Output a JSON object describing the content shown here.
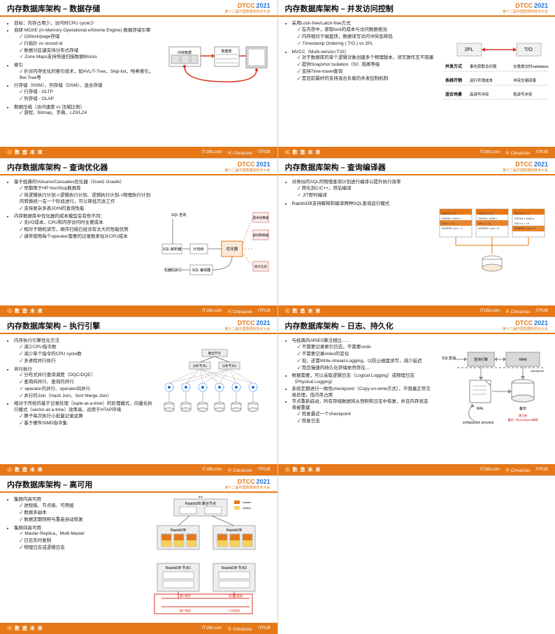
{
  "brand": {
    "name": "DTCC",
    "year": "2021",
    "sub": "第十二届中国数据库技术大会"
  },
  "footer": {
    "slogan": "数 造 未 来",
    "logos": [
      "IT168.com",
      "⦿ ChinaUnix",
      "ITPUB"
    ]
  },
  "slides": [
    {
      "title": "内存数据库架构 – 数据存储",
      "bullets": [
        {
          "t": "目标：内存占用少，访问时CPU cycle少"
        },
        {
          "t": "自研 MOXE (in-Memory Operational eXtreme Engine) 数据存储引擎",
          "c": [
            "以block/page存储",
            "行指针 vs record-id",
            "数据分区键支持分布式存储",
            "Zone Maps支持快速扫描数据Blocks"
          ]
        },
        {
          "t": "索引",
          "c": [
            "针对内存优化的索引技术，如AVL/T-Tree，Skip-list，哈希索引，Bw-Tree等"
          ]
        },
        {
          "t": "行存储（NSM）、列存储（DSM）、混合存储",
          "c": [
            "行存储 - OLTP",
            "列存储 - OLAP"
          ]
        },
        {
          "t": "数据压缩（访问速度 vs 压缩比例）",
          "c": [
            "游程、Bitmap、字典、LZ0/LZ4"
          ]
        }
      ],
      "diagram": "storage"
    },
    {
      "title": "内存数据库架构 – 并发访问控制",
      "bullets": [
        {
          "t": "采用Lock-free/Latch-free方式",
          "c": [
            "在内存中，获取lock的成本与访问数据相当",
            "内存相对于磁盘快，数据读写访问冲突会降低",
            "Timestamp Ordering ( T/O ) vs  2PL"
          ]
        },
        {
          "t": "MVCC（Multi-version T/O）",
          "c": [
            "对于数据库的单个逻辑对象创建多个物理版本，读写操作互不阻塞",
            "提供Snapshot Isolation（SI）隔离等级",
            "支持Time-travel查询",
            "是目前最好的支持混合负载的并发控制机制"
          ]
        }
      ],
      "diagram": "concurrency"
    },
    {
      "title": "内存数据库架构 – 查询优化器",
      "bullets": [
        {
          "t": "基于经典的Volcano/Cascades优化器（Goetz Graefe）",
          "c": [
            "早期用于HP NonStop数据库",
            "将逻辑执行计划->逻辑执行计划、逻辑执行计划->物理执行计划的转换统一在一个阶段进行，可以降低冗余工作",
            "支持复杂多表JOIN的查询性能"
          ]
        },
        {
          "t": "内存数据库中优化器的成本模型会有些不同：",
          "c": [
            "无I/O成本，CPU和内存访问时主要成本",
            "相对于随机读写，顺序扫描已经没有太大的性能优势",
            "通常使用每个operator需要的记录数来估计CPU成本"
          ]
        }
      ],
      "diagram": "optimizer"
    },
    {
      "title": "内存数据库架构 – 查询编译器",
      "bullets": [
        {
          "t": "对类似的SQL的物理查询计划进行编译以提升执行效率",
          "c": [
            "转化到C/C++，然后编译",
            "JIT即时编译"
          ]
        },
        {
          "t": "RapidsDB支持解释和编译两种SQL查询运行模式"
        }
      ],
      "diagram": "compiler"
    },
    {
      "title": "内存数据库架构 – 执行引擎",
      "bullets": [
        {
          "t": "内存执行引擎优化方法",
          "c": [
            "减少CPU指令数",
            "减少单个指令的CPU cycle数",
            "多进程并行执行"
          ]
        },
        {
          "t": "并行执行",
          "c": [
            "分布式并行查询调度（DQC/DQE）",
            "查询间并行、查询内并行",
            "operator内并行、operator间并行",
            "并行的Join（Hash Join、Sort Merge Join）"
          ]
        },
        {
          "t": "相对于传统的基于记录处理（tuple-at-a-time）的处理模式，向量化执行模式（vector-at-a-time）效率高，适用于HTAP环境",
          "c": [
            "算子每次执行小批量记录运算",
            "基于硬件SIMD指令集"
          ]
        }
      ],
      "diagram": "execution"
    },
    {
      "title": "内存数据库架构 – 日志、持久化",
      "bullets": [
        {
          "t": "与经典的ARIES算法相比……",
          "c": [
            "不需要记录索引日志，不需要undo",
            "不需要记录index的变化",
            "但，还需Write-Ahead-Logging，以防止磁盘读写，减少延迟",
            "而且慢速的持久化存储依然存在…"
          ]
        },
        {
          "t": "根据需要，可以采取逻辑日志（Logical Logging）或物理日志（Physical Logging）"
        },
        {
          "t": "系统定期进行一致性checkpoint（Copy-on-write方式），不阻塞正常交易处理，低内存占用"
        },
        {
          "t": "节点重新启动，所有存储数据将从快照和日志中恢复，并且内存状态将被重建",
          "c": [
            "恢复最近一个checkpoint",
            "恢复日志"
          ]
        }
      ],
      "diagram": "log"
    },
    {
      "title": "内存数据库架构 – 高可用",
      "bullets": [
        {
          "t": "集群内高可用",
          "c": [
            "进程级、节点级、可用组",
            "数据多副本",
            "数据定期快照与重启自动恢复"
          ]
        },
        {
          "t": "集群间高可用",
          "c": [
            "Master-Replica，Multi-Master",
            "日志实时复制",
            "物理日志或逻辑日志"
          ]
        }
      ],
      "diagram": "ha"
    }
  ],
  "concurrencyTable": {
    "cols": [
      "2PL",
      "T/O"
    ],
    "rows": [
      {
        "label": "并发方式",
        "l": "事先获取访问锁",
        "r": "交易提交时validation"
      },
      {
        "label": "系统开销",
        "l": "运行开销成本",
        "r": "冲突交易回滚"
      },
      {
        "label": "适合场景",
        "l": "高读写冲突",
        "r": "低读写冲突"
      }
    ],
    "arrowColor": "#d9321f"
  },
  "compilerBlocks": [
    {
      "sql": "SELECT a,t\\nFROM t JOIN t ..\\nON t.i = t.i\\nWHERE t.col = 1",
      "color": "#e67817"
    },
    {
      "sql": "SELECT b,t\\nFROM r JOIN t\\nON r.j = t.j\\nWHERE t.col = 5",
      "color": "#e67817"
    },
    {
      "sql": "SELECT c,t\\nFROM s JOIN s\\nON s.k = t.k\\nWHERE t.col = 3",
      "color": "#e67817"
    }
  ],
  "logDiagram": {
    "labels": {
      "sql": "SQL查询",
      "engine": "查询引擎",
      "ram": "RAM",
      "wal": "WAL",
      "backup": "备份",
      "compaction": "compaction process",
      "checkpoint": "checkpoint",
      "snapshot": "最近一次checkpoint快照"
    }
  },
  "haDiagram": {
    "labels": {
      "aggCluster": "RapidsDB 聚合节点",
      "master": "master",
      "replica": "replica",
      "node1": "RapidsDB 节点1",
      "node2": "RapidsDB 节点2",
      "clientWrite": "客户端写",
      "clientRead": "客户端读",
      "syncWrite": "同步写复制",
      "syncRead": "只读查询"
    }
  },
  "colors": {
    "accent": "#e67817",
    "blue": "#1a73d9",
    "red": "#d9321f",
    "gray": "#888"
  }
}
